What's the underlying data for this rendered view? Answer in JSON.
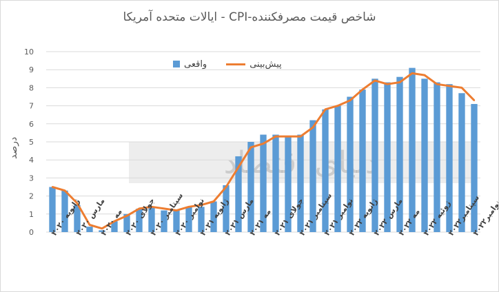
{
  "title": "شاخص قیمت مصرفکننده-CPI - ایالات متحده آمریکا",
  "watermark": "دنیای اقتصاد",
  "legend": {
    "bars_label": "واقعی",
    "line_label": "پیش‌بینی"
  },
  "colors": {
    "bars": "#5b9bd5",
    "line": "#ed7d31",
    "grid": "#d9d9d9",
    "text": "#595959"
  },
  "chart_data": {
    "type": "bar",
    "title": "شاخص قیمت مصرفکننده-CPI - ایالات متحده آمریکا",
    "ylabel": "درصد",
    "xlabel": "",
    "ylim": [
      0,
      10
    ],
    "yticks": [
      0,
      1,
      2,
      3,
      4,
      5,
      6,
      7,
      8,
      9,
      10
    ],
    "grid": true,
    "legend_position": "top",
    "x_tick_labels": [
      {
        "index": 0,
        "label": "ژانویه ۲۰۲۰"
      },
      {
        "index": 2,
        "label": "مارس ۲۰۲۰"
      },
      {
        "index": 4,
        "label": "مه ۲۰۲۰"
      },
      {
        "index": 6,
        "label": "جولای ۲۰۲۰"
      },
      {
        "index": 8,
        "label": "سپتامبر ۲۰۲۰"
      },
      {
        "index": 10,
        "label": "نوامبر ۲۰۲۰"
      },
      {
        "index": 12,
        "label": "ژانویه ۲۰۲۱"
      },
      {
        "index": 14,
        "label": "مارس ۲۰۲۱"
      },
      {
        "index": 16,
        "label": "مه ۲۰۲۱"
      },
      {
        "index": 18,
        "label": "جولای ۲۰۲۱"
      },
      {
        "index": 20,
        "label": "سپتامبر ۲۰۲۱"
      },
      {
        "index": 22,
        "label": "نوامبر ۲۰۲۱"
      },
      {
        "index": 24,
        "label": "ژانویه ۲۰۲۲"
      },
      {
        "index": 26,
        "label": "مارس ۲۰۲۲"
      },
      {
        "index": 28,
        "label": "مه ۲۰۲۲"
      },
      {
        "index": 30,
        "label": "ژوئیه ۲۰۲۲"
      },
      {
        "index": 32,
        "label": "سپتامبر۲۰۲۲"
      },
      {
        "index": 34,
        "label": "نوامبر۲۰۲۲"
      }
    ],
    "series": [
      {
        "name": "واقعی",
        "type": "bar",
        "values": [
          2.5,
          2.3,
          1.5,
          0.3,
          0.1,
          0.6,
          1.0,
          1.3,
          1.4,
          1.2,
          1.2,
          1.4,
          1.4,
          1.7,
          2.6,
          4.2,
          5.0,
          5.4,
          5.4,
          5.3,
          5.4,
          6.2,
          6.8,
          7.0,
          7.5,
          7.9,
          8.5,
          8.3,
          8.6,
          9.1,
          8.5,
          8.3,
          8.2,
          7.7,
          7.1
        ]
      },
      {
        "name": "پیش‌بینی",
        "type": "line",
        "values": [
          2.5,
          2.3,
          1.6,
          0.4,
          0.2,
          0.6,
          0.9,
          1.3,
          1.4,
          1.3,
          1.2,
          1.4,
          1.5,
          1.7,
          2.5,
          3.6,
          4.7,
          4.9,
          5.3,
          5.3,
          5.3,
          5.8,
          6.8,
          7.0,
          7.3,
          7.9,
          8.4,
          8.2,
          8.3,
          8.8,
          8.7,
          8.2,
          8.1,
          8.0,
          7.3
        ]
      }
    ]
  }
}
